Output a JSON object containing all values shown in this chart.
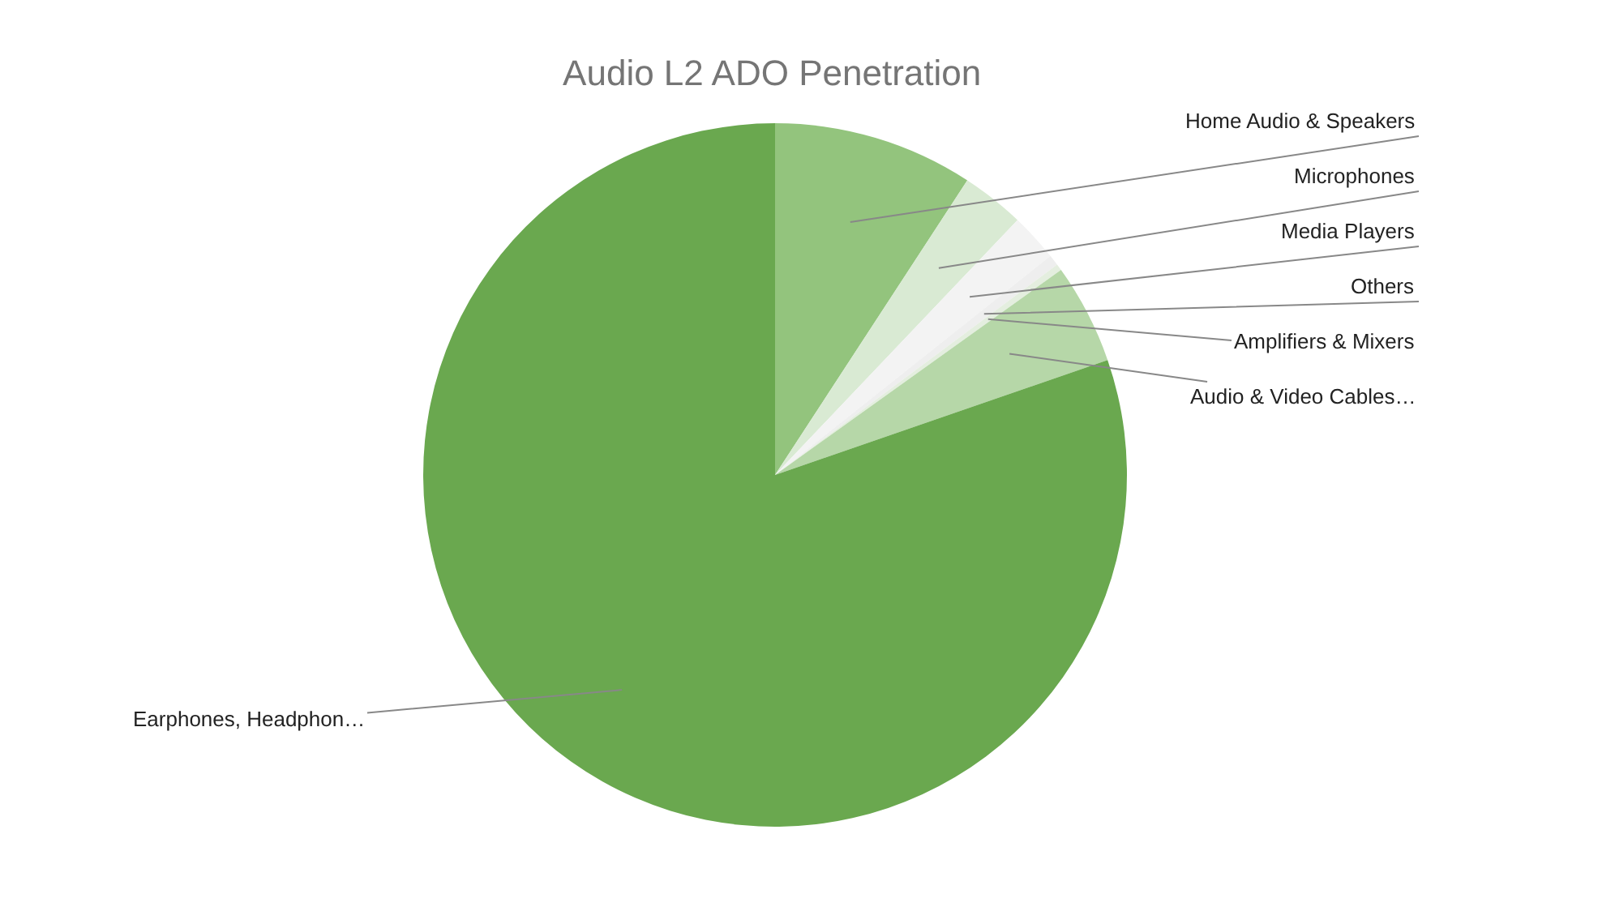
{
  "chart_data": {
    "type": "pie",
    "title": "Audio L2 ADO Penetration",
    "categories": [
      "Home Audio & Speakers",
      "Microphones",
      "Media Players",
      "Others",
      "Amplifiers & Mixers",
      "Audio & Video Cables…",
      "Earphones, Headphon…"
    ],
    "values": [
      9.2,
      2.9,
      2.2,
      0.5,
      0.3,
      4.6,
      80.3
    ],
    "colors": [
      "#93c47d",
      "#d9ead3",
      "#f3f3f3",
      "#eeeeee",
      "#e4eedf",
      "#b6d7a8",
      "#6aa84f"
    ],
    "legend": false
  }
}
